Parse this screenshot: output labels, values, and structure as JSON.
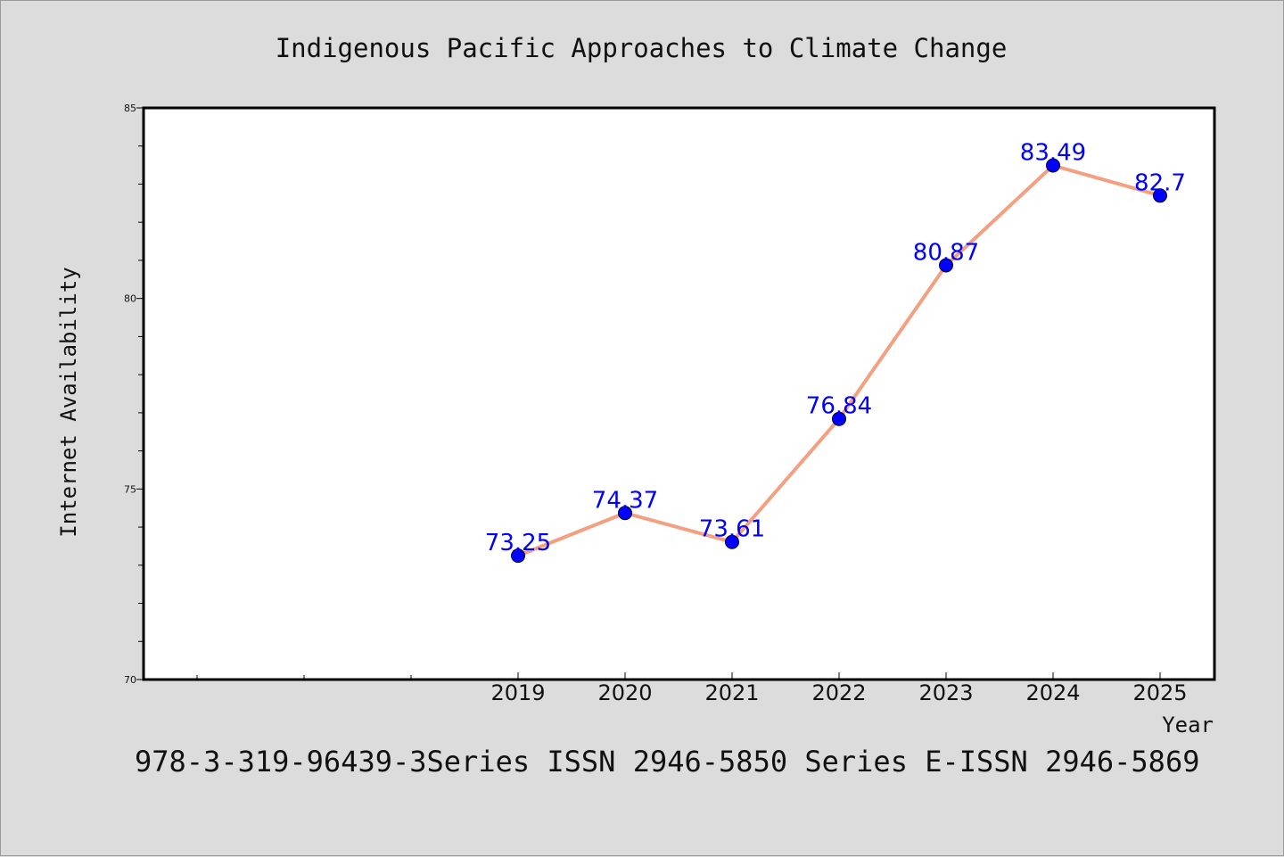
{
  "chart_data": {
    "type": "line",
    "title": "Indigenous Pacific Approaches to Climate Change",
    "xlabel": "Year",
    "ylabel": "Internet Availability",
    "categories": [
      "2019",
      "2020",
      "2021",
      "2022",
      "2023",
      "2024",
      "2025"
    ],
    "series": [
      {
        "values": [
          73.25,
          74.37,
          73.61,
          76.84,
          80.87,
          83.49,
          82.7
        ]
      }
    ],
    "data_labels": [
      "73.25",
      "74.37",
      "73.61",
      "76.84",
      "80.87",
      "83.49",
      "82.7"
    ],
    "ylim": [
      70,
      85
    ],
    "yticks": [
      "70",
      "75",
      "80",
      "85"
    ],
    "grid": false,
    "legend": "none",
    "colors": {
      "line": "#f4a080",
      "marker": "#0000ff",
      "label": "#0000ff",
      "background": "#dcdcdc",
      "plot_background": "#ffffff"
    }
  },
  "footer": "978-3-319-96439-3Series ISSN 2946-5850 Series E-ISSN 2946-5869"
}
